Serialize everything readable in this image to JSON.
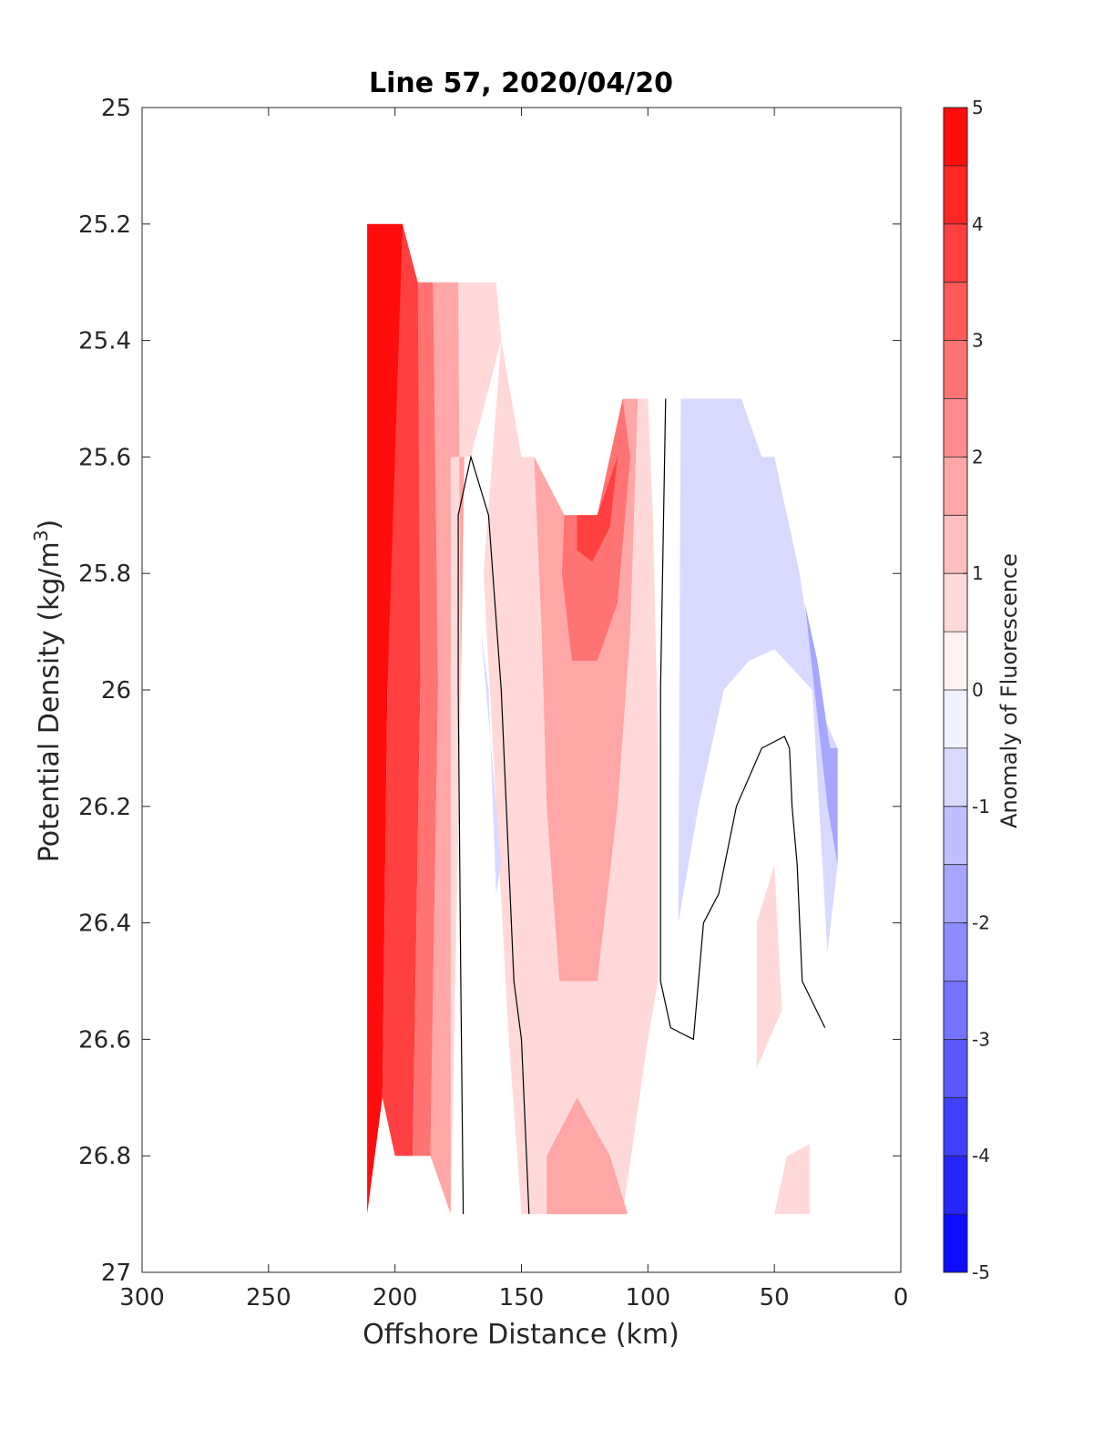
{
  "chart_data": {
    "type": "heatmap",
    "subtype": "filled-contour-section",
    "title": "Line 57, 2020/04/20",
    "xlabel": "Offshore Distance (km)",
    "ylabel_main": "Potential Density (kg/m",
    "ylabel_sup": "3",
    "ylabel_tail": ")",
    "xlim": [
      300,
      0
    ],
    "x_reversed": true,
    "ylim": [
      25,
      27
    ],
    "y_reversed": true,
    "xticks": [
      300,
      250,
      200,
      150,
      100,
      50,
      0
    ],
    "yticks": [
      25,
      25.2,
      25.4,
      25.6,
      25.8,
      26,
      26.2,
      26.4,
      26.6,
      26.8,
      27
    ],
    "yticks_labels": [
      "25",
      "25.2",
      "25.4",
      "25.6",
      "25.8",
      "26",
      "26.2",
      "26.4",
      "26.6",
      "26.8",
      "27"
    ],
    "colorbar": {
      "label": "Anomaly of Fluorescence",
      "range": [
        -5,
        5
      ],
      "ticks": [
        5,
        4,
        3,
        2,
        1,
        0,
        -1,
        -2,
        -3,
        -4,
        -5
      ],
      "tick_labels": [
        "5",
        "4",
        "3",
        "2",
        "1",
        "0",
        "-1",
        "-2",
        "-3",
        "-4",
        "-5"
      ],
      "level_step": 0.5,
      "colormap": "blue-white-red"
    },
    "colors": {
      "positive": "#ff0000",
      "negative": "#0000ff",
      "neutral": "#ffffff"
    },
    "regions": [
      {
        "level": 4.75,
        "polygon": [
          [
            211,
            25.2
          ],
          [
            197,
            25.2
          ],
          [
            197,
            25.5
          ],
          [
            203,
            26
          ],
          [
            205,
            26.7
          ],
          [
            211,
            26.9
          ]
        ]
      },
      {
        "level": 3.75,
        "polygon": [
          [
            197,
            25.2
          ],
          [
            191,
            25.3
          ],
          [
            188,
            25.5
          ],
          [
            190,
            26
          ],
          [
            193,
            26.8
          ],
          [
            200,
            26.8
          ],
          [
            205,
            26.7
          ],
          [
            203,
            26
          ]
        ]
      },
      {
        "level": 2.75,
        "polygon": [
          [
            191,
            25.3
          ],
          [
            185,
            25.3
          ],
          [
            180,
            25.5
          ],
          [
            183,
            26
          ],
          [
            186,
            26.8
          ],
          [
            193,
            26.8
          ],
          [
            190,
            26
          ]
        ]
      },
      {
        "level": 1.75,
        "polygon": [
          [
            185,
            25.3
          ],
          [
            175,
            25.3
          ],
          [
            172,
            25.45
          ],
          [
            174,
            26
          ],
          [
            178,
            26.9
          ],
          [
            186,
            26.8
          ],
          [
            183,
            26
          ]
        ]
      },
      {
        "level": 0.75,
        "polygon": [
          [
            175,
            25.3
          ],
          [
            160,
            25.3
          ],
          [
            158,
            25.4
          ],
          [
            164,
            25.5
          ],
          [
            170,
            25.6
          ],
          [
            178,
            25.6
          ],
          [
            178,
            26.9
          ],
          [
            174,
            26
          ]
        ]
      },
      {
        "level": 0.75,
        "polygon": [
          [
            158,
            25.4
          ],
          [
            150,
            25.6
          ],
          [
            145,
            25.6
          ],
          [
            133,
            25.7
          ],
          [
            120,
            25.7
          ],
          [
            110,
            25.5
          ],
          [
            100,
            25.5
          ],
          [
            98,
            25.7
          ],
          [
            96,
            26.1
          ],
          [
            96,
            26.5
          ],
          [
            100,
            26.6
          ],
          [
            110,
            26.9
          ],
          [
            150,
            26.9
          ],
          [
            155,
            26.6
          ],
          [
            160,
            26.2
          ],
          [
            165,
            25.8
          ]
        ]
      },
      {
        "level": 1.75,
        "polygon": [
          [
            145,
            25.6
          ],
          [
            133,
            25.7
          ],
          [
            120,
            25.7
          ],
          [
            110,
            25.5
          ],
          [
            104,
            25.5
          ],
          [
            107,
            25.9
          ],
          [
            112,
            26.2
          ],
          [
            120,
            26.5
          ],
          [
            135,
            26.5
          ],
          [
            140,
            26.2
          ],
          [
            142,
            25.9
          ]
        ]
      },
      {
        "level": 2.75,
        "polygon": [
          [
            133,
            25.7
          ],
          [
            120,
            25.7
          ],
          [
            110,
            25.5
          ],
          [
            107,
            25.6
          ],
          [
            112,
            25.85
          ],
          [
            120,
            25.95
          ],
          [
            130,
            25.95
          ],
          [
            134,
            25.8
          ]
        ]
      },
      {
        "level": 3.75,
        "polygon": [
          [
            128,
            25.7
          ],
          [
            120,
            25.7
          ],
          [
            112,
            25.6
          ],
          [
            115,
            25.72
          ],
          [
            122,
            25.78
          ],
          [
            128,
            25.76
          ]
        ]
      },
      {
        "level": 1.75,
        "polygon": [
          [
            140,
            26.8
          ],
          [
            128,
            26.7
          ],
          [
            115,
            26.8
          ],
          [
            108,
            26.9
          ],
          [
            140,
            26.9
          ]
        ]
      },
      {
        "level": -0.75,
        "polygon": [
          [
            87,
            25.5
          ],
          [
            63,
            25.5
          ],
          [
            55,
            25.6
          ],
          [
            50,
            25.6
          ],
          [
            40,
            25.8
          ],
          [
            35,
            25.95
          ],
          [
            30,
            26.05
          ],
          [
            25,
            26.1
          ],
          [
            25,
            26.3
          ],
          [
            29,
            26.45
          ],
          [
            35,
            26.0
          ],
          [
            50,
            25.93
          ],
          [
            60,
            25.95
          ],
          [
            70,
            26.0
          ],
          [
            80,
            26.2
          ],
          [
            88,
            26.4
          ]
        ]
      },
      {
        "level": -1.75,
        "polygon": [
          [
            38,
            25.85
          ],
          [
            33,
            25.95
          ],
          [
            28,
            26.1
          ],
          [
            25,
            26.1
          ],
          [
            25,
            26.3
          ],
          [
            29,
            26.2
          ]
        ]
      },
      {
        "level": -0.75,
        "polygon": [
          [
            166,
            25.9
          ],
          [
            158,
            26.3
          ],
          [
            160,
            26.35
          ],
          [
            163,
            26.0
          ]
        ]
      },
      {
        "level": 0.75,
        "polygon": [
          [
            50,
            26.3
          ],
          [
            57,
            26.4
          ],
          [
            57,
            26.65
          ],
          [
            52,
            26.6
          ],
          [
            47,
            26.55
          ]
        ]
      },
      {
        "level": 0.75,
        "polygon": [
          [
            50,
            26.9
          ],
          [
            45,
            26.8
          ],
          [
            36,
            26.78
          ],
          [
            36,
            26.9
          ]
        ]
      }
    ],
    "contours": [
      {
        "level": 0,
        "points": [
          [
            173,
            26.9
          ],
          [
            174,
            26.5
          ],
          [
            175,
            26.0
          ],
          [
            175,
            25.7
          ],
          [
            170,
            25.6
          ],
          [
            163,
            25.7
          ],
          [
            158,
            26.0
          ],
          [
            153,
            26.5
          ],
          [
            150,
            26.6
          ],
          [
            147,
            26.9
          ]
        ]
      },
      {
        "level": 0,
        "points": [
          [
            93,
            25.5
          ],
          [
            95,
            26.0
          ],
          [
            95,
            26.5
          ],
          [
            91,
            26.58
          ],
          [
            82,
            26.6
          ],
          [
            78,
            26.4
          ],
          [
            72,
            26.35
          ],
          [
            65,
            26.2
          ],
          [
            55,
            26.1
          ],
          [
            46,
            26.08
          ],
          [
            44,
            26.1
          ],
          [
            43,
            26.2
          ],
          [
            41,
            26.3
          ],
          [
            39,
            26.5
          ],
          [
            30,
            26.58
          ]
        ]
      }
    ]
  }
}
